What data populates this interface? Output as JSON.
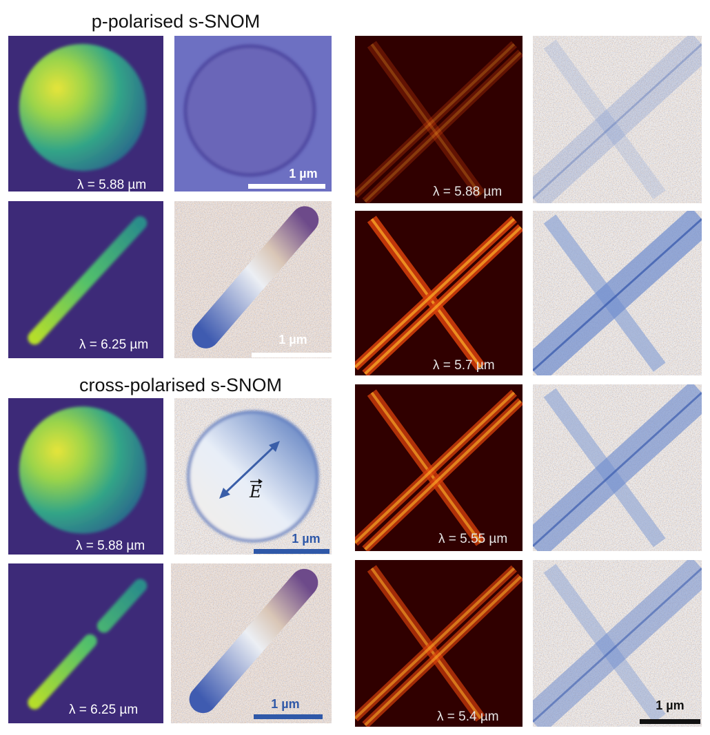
{
  "left": {
    "sections": [
      {
        "title": "p-polarised s-SNOM",
        "rows": [
          {
            "wavelength_label": "λ = 5.88 µm",
            "scale_bar": "1 µm"
          },
          {
            "wavelength_label": "λ = 6.25 µm",
            "scale_bar": "1 µm"
          }
        ]
      },
      {
        "title": "cross-polarised s-SNOM",
        "rows": [
          {
            "wavelength_label": "λ = 5.88 µm",
            "scale_bar": "1 µm",
            "field_label": "E"
          },
          {
            "wavelength_label": "λ = 6.25 µm",
            "scale_bar": "1 µm"
          }
        ]
      }
    ]
  },
  "right": {
    "rows": [
      {
        "wavelength_label": "λ = 5.88 µm"
      },
      {
        "wavelength_label": "λ = 5.7 µm"
      },
      {
        "wavelength_label": "λ = 5.55 µm"
      },
      {
        "wavelength_label": "λ = 5.4 µm",
        "scale_bar": "1 µm"
      }
    ]
  }
}
